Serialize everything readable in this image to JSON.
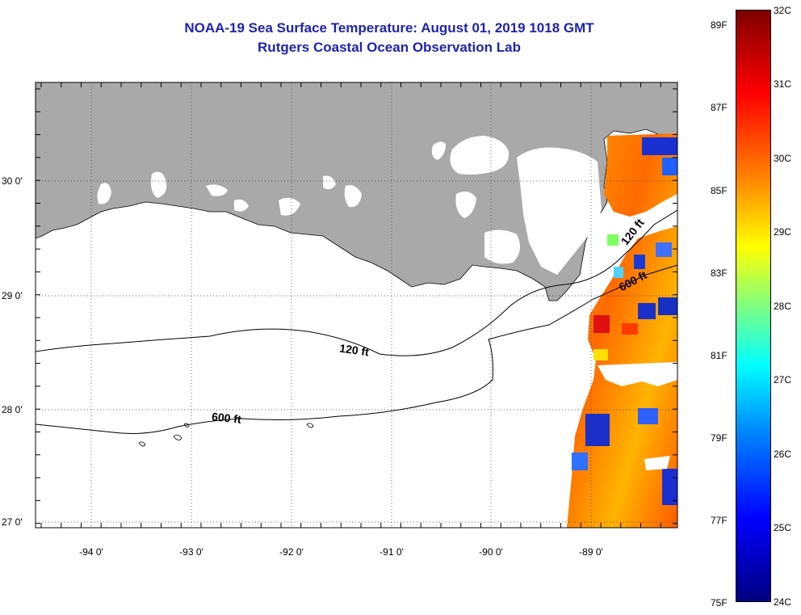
{
  "title": "NOAA-19 Sea Surface Temperature:  August 01, 2019 1018 GMT",
  "subtitle": "Rutgers Coastal Ocean Observation Lab",
  "map": {
    "x_ticks": [
      "-94 0'",
      "-93 0'",
      "-92 0'",
      "-91 0'",
      "-90 0'",
      "-89 0'"
    ],
    "y_ticks": [
      "30 0'",
      "29 0'",
      "28 0'",
      "27 0'"
    ],
    "contour_labels": {
      "c120_west": "120 ft",
      "c600_west": "600 ft",
      "c120_east": "120 ft",
      "c600_east": "600 ft"
    },
    "colors": {
      "land": "#a9a9a9",
      "water": "#ffffff",
      "contour": "#000000"
    }
  },
  "colorbar": {
    "fahrenheit_labels": [
      "89F",
      "87F",
      "85F",
      "83F",
      "81F",
      "79F",
      "77F",
      "75F"
    ],
    "celsius_labels": [
      "32C",
      "31C",
      "30C",
      "29C",
      "28C",
      "27C",
      "26C",
      "25C",
      "24C"
    ],
    "range_c": [
      24,
      32
    ],
    "colormap": "jet"
  }
}
